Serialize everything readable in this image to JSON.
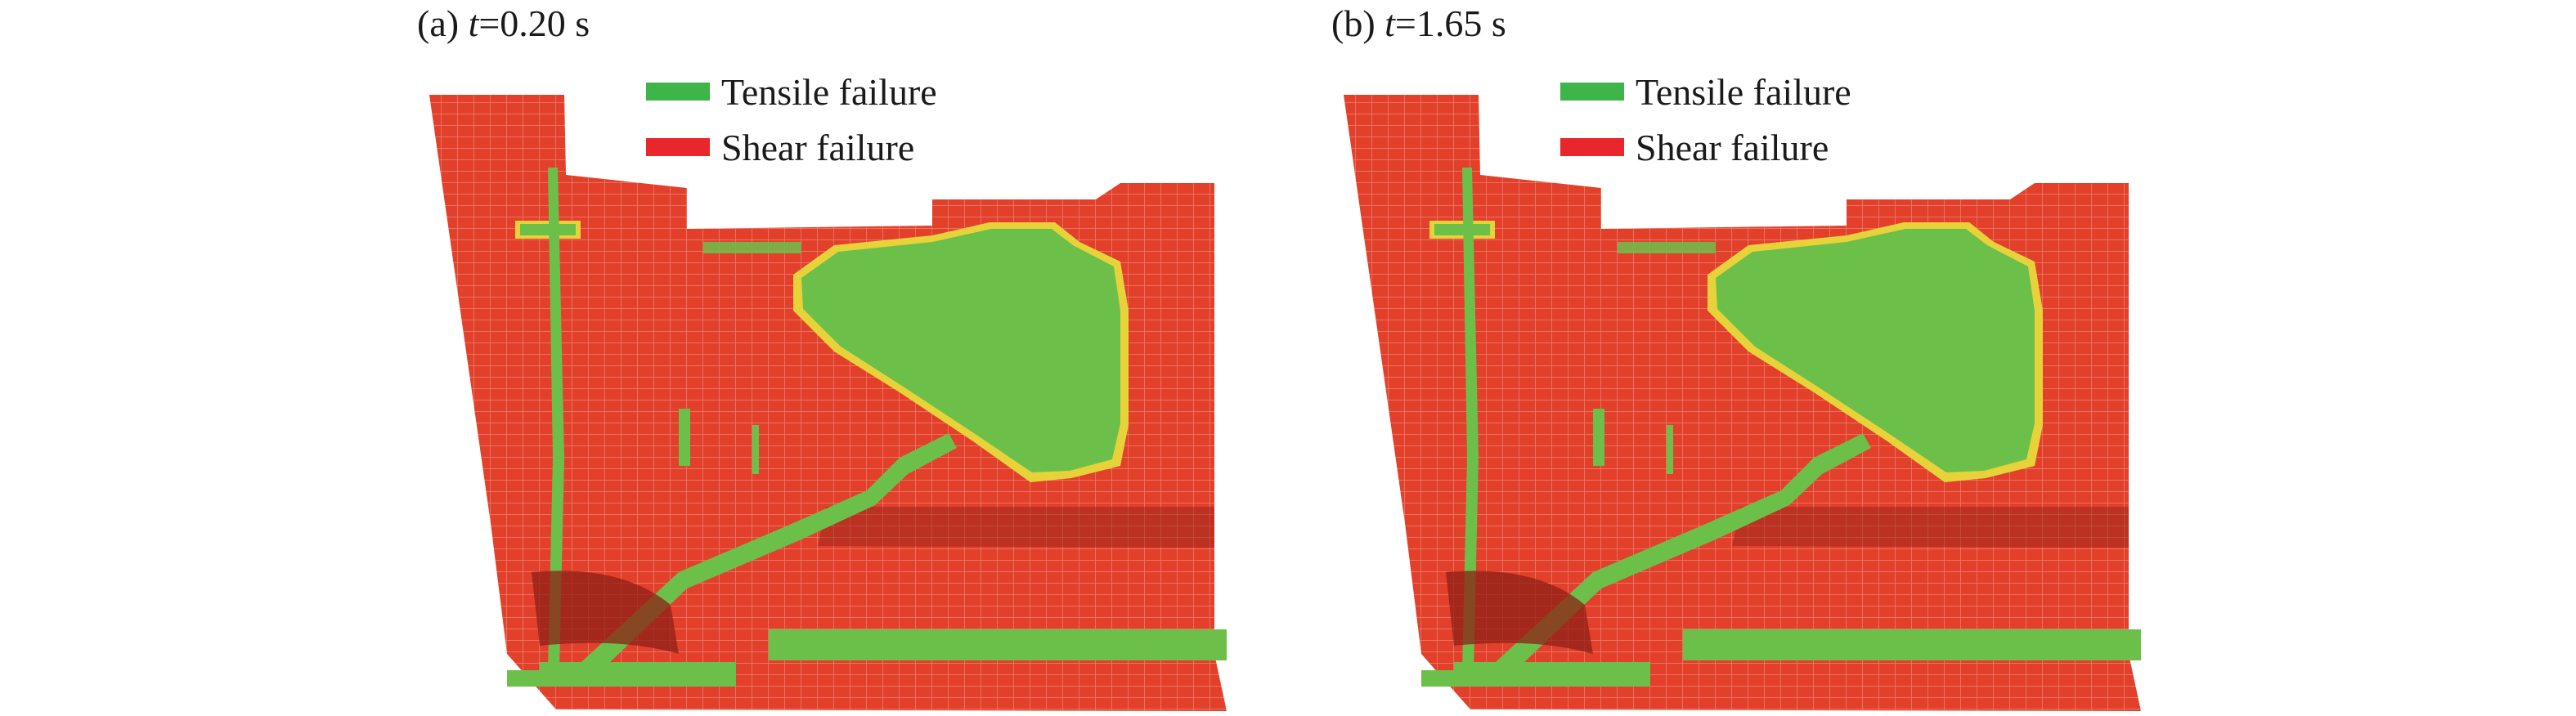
{
  "panels": [
    {
      "label_prefix": "(a) ",
      "time_symbol": "t",
      "time_value": "=0.20 s"
    },
    {
      "label_prefix": "(b) ",
      "time_symbol": "t",
      "time_value": "=1.65 s"
    }
  ],
  "legend": {
    "tensile": {
      "label": "Tensile failure",
      "color": "#3db549"
    },
    "shear": {
      "label": "Shear failure",
      "color": "#e8262b"
    }
  },
  "colors": {
    "shear_fill": "#e2402b",
    "shear_dark": "#8f1f17",
    "tensile_fill": "#6cc04a",
    "transition": "#e8d23a",
    "grid": "#f4b9ad"
  }
}
